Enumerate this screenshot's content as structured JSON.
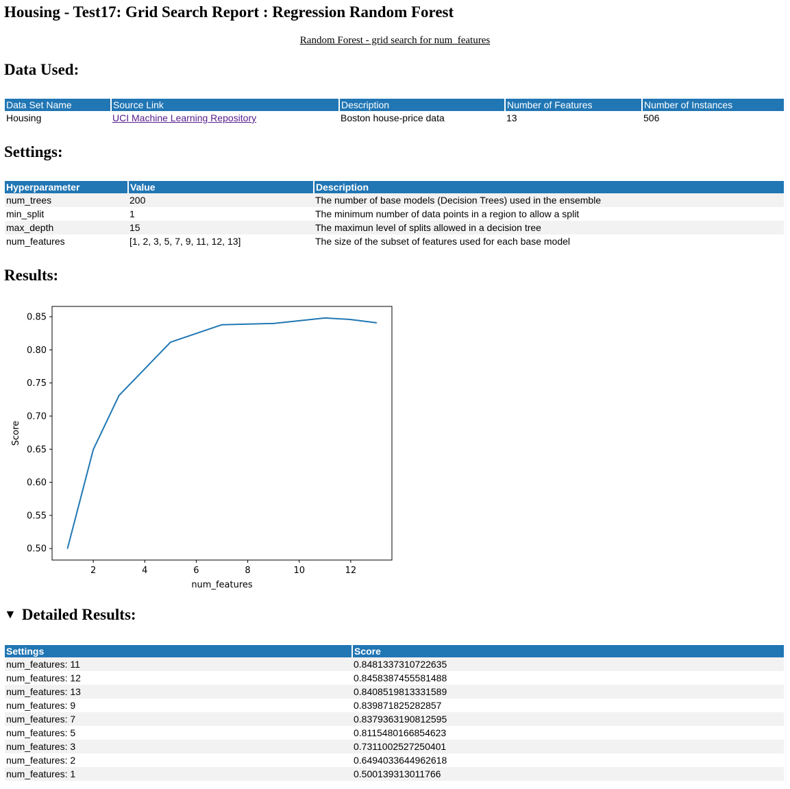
{
  "title": "Housing - Test17: Grid Search Report : Regression Random Forest",
  "subtitle_link": "Random Forest - grid search for num_features",
  "data_used": {
    "heading": "Data Used:",
    "columns": [
      "Data Set Name",
      "Source Link",
      "Description",
      "Number of Features",
      "Number of Instances"
    ],
    "row": {
      "name": "Housing",
      "source_link": "UCI Machine Learning Repository",
      "description": "Boston house-price data",
      "num_features": "13",
      "num_instances": "506"
    }
  },
  "settings": {
    "heading": "Settings:",
    "columns": [
      "Hyperparameter",
      "Value",
      "Description"
    ],
    "rows": [
      {
        "param": "num_trees",
        "value": "200",
        "description": "The number of base models (Decision Trees) used in the ensemble"
      },
      {
        "param": "min_split",
        "value": "1",
        "description": "The minimum number of data points in a region to allow a split"
      },
      {
        "param": "max_depth",
        "value": "15",
        "description": "The maximun level of splits allowed in a decision tree"
      },
      {
        "param": "num_features",
        "value": "[1, 2, 3, 5, 7, 9, 11, 12, 13]",
        "description": "The size of the subset of features used for each base model"
      }
    ]
  },
  "results": {
    "heading": "Results:"
  },
  "chart_data": {
    "type": "line",
    "title": "",
    "xlabel": "num_features",
    "ylabel": "Score",
    "x": [
      1,
      2,
      3,
      5,
      7,
      9,
      11,
      12,
      13
    ],
    "series": [
      {
        "values": [
          0.500139313011766,
          0.6494033644962618,
          0.7311002527250401,
          0.8115480166854623,
          0.8379363190812595,
          0.839871825282857,
          0.8481337310722635,
          0.8458387455581488,
          0.8408519813331589
        ],
        "color": "#1f77b4"
      }
    ],
    "xticks": [
      "2",
      "4",
      "6",
      "8",
      "10",
      "12"
    ],
    "yticks": [
      "0.50",
      "0.55",
      "0.60",
      "0.65",
      "0.70",
      "0.75",
      "0.80",
      "0.85"
    ],
    "xlim": [
      0.4,
      13.6
    ],
    "ylim": [
      0.4826,
      0.8656
    ],
    "grid": false
  },
  "detailed": {
    "heading": "Detailed Results:",
    "columns": [
      "Settings",
      "Score"
    ],
    "rows": [
      {
        "settings": "num_features: 11",
        "score": "0.8481337310722635"
      },
      {
        "settings": "num_features: 12",
        "score": "0.8458387455581488"
      },
      {
        "settings": "num_features: 13",
        "score": "0.8408519813331589"
      },
      {
        "settings": "num_features: 9",
        "score": "0.839871825282857"
      },
      {
        "settings": "num_features: 7",
        "score": "0.8379363190812595"
      },
      {
        "settings": "num_features: 5",
        "score": "0.8115480166854623"
      },
      {
        "settings": "num_features: 3",
        "score": "0.7311002527250401"
      },
      {
        "settings": "num_features: 2",
        "score": "0.6494033644962618"
      },
      {
        "settings": "num_features: 1",
        "score": "0.500139313011766"
      }
    ]
  },
  "colors": {
    "header_bg": "#2176b4",
    "stripe": "#f2f2f2",
    "link_visited": "#551a8b"
  }
}
